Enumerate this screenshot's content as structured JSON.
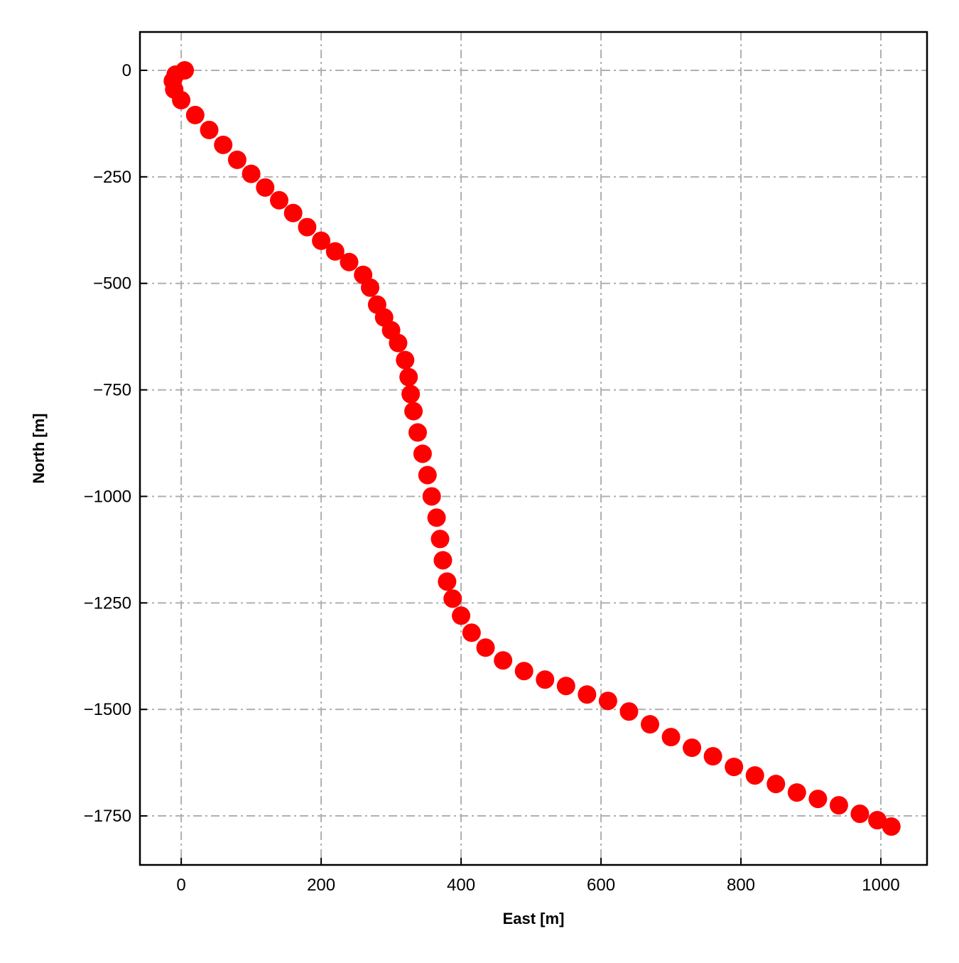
{
  "chart_data": {
    "type": "scatter",
    "x_label": "East [m]",
    "y_label": "North [m]",
    "color": "#ff0000",
    "grid": true,
    "xlim": [
      -59,
      1066
    ],
    "ylim": [
      -1865,
      90
    ],
    "xticks": [
      0,
      200,
      400,
      600,
      800,
      1000
    ],
    "yticks": [
      {
        "value": 0,
        "label": "0"
      },
      {
        "value": -250,
        "label": "−250"
      },
      {
        "value": -500,
        "label": "−500"
      },
      {
        "value": -750,
        "label": "−750"
      },
      {
        "value": -1000,
        "label": "−1000"
      },
      {
        "value": -1250,
        "label": "−1250"
      },
      {
        "value": -1500,
        "label": "−1500"
      },
      {
        "value": -1750,
        "label": "−1750"
      }
    ],
    "x": [
      5,
      -8,
      -12,
      -10,
      0,
      20,
      40,
      60,
      80,
      100,
      120,
      140,
      160,
      180,
      200,
      220,
      240,
      260,
      270,
      280,
      290,
      300,
      310,
      320,
      325,
      328,
      332,
      338,
      345,
      352,
      358,
      365,
      370,
      374,
      380,
      388,
      400,
      415,
      435,
      460,
      490,
      520,
      550,
      580,
      610,
      640,
      670,
      700,
      730,
      760,
      790,
      820,
      850,
      880,
      910,
      940,
      970,
      995,
      1015
    ],
    "y": [
      0,
      -10,
      -25,
      -45,
      -70,
      -105,
      -140,
      -175,
      -210,
      -243,
      -275,
      -305,
      -335,
      -368,
      -400,
      -425,
      -450,
      -480,
      -510,
      -550,
      -580,
      -610,
      -640,
      -680,
      -720,
      -760,
      -800,
      -850,
      -900,
      -950,
      -1000,
      -1050,
      -1100,
      -1150,
      -1200,
      -1240,
      -1280,
      -1320,
      -1355,
      -1385,
      -1410,
      -1430,
      -1445,
      -1465,
      -1480,
      -1505,
      -1535,
      -1565,
      -1590,
      -1610,
      -1635,
      -1655,
      -1675,
      -1695,
      -1710,
      -1725,
      -1745,
      -1760,
      -1775
    ]
  }
}
